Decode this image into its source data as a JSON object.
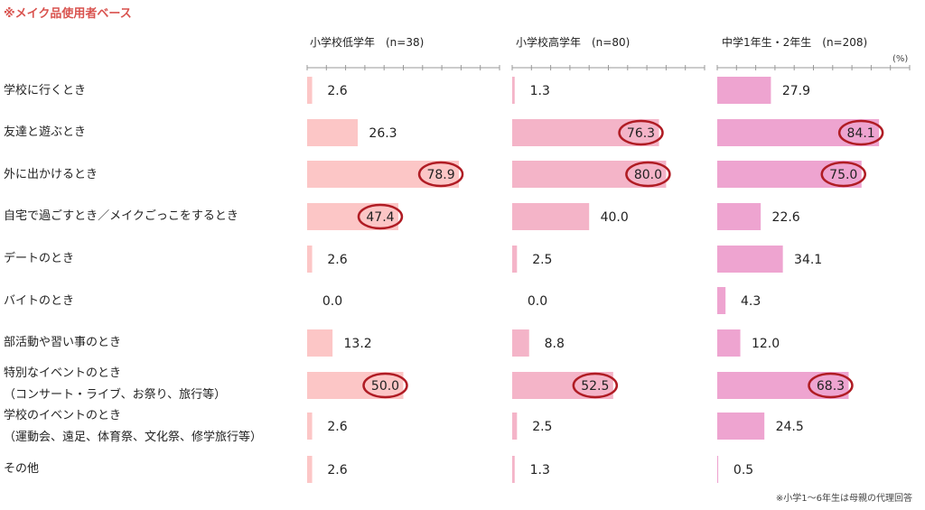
{
  "notes": {
    "base": "※メイク品使用者ベース",
    "proxy": "※小学1〜6年生は母親の代理回答",
    "unit": "(%)"
  },
  "colors": {
    "panels": [
      "#fcc6c6",
      "#f4b4c8",
      "#eea4d0"
    ],
    "highlight": "#b01c24"
  },
  "chart_data": {
    "type": "bar",
    "orientation": "horizontal",
    "categories": [
      "学校に行くとき",
      "友達と遊ぶとき",
      "外に出かけるとき",
      "自宅で過ごすとき／メイクごっこをするとき",
      "デートのとき",
      "バイトのとき",
      "部活動や習い事のとき",
      "特別なイベントのとき",
      "学校のイベントのとき",
      "その他"
    ],
    "category_sublabels": [
      "",
      "",
      "",
      "",
      "",
      "",
      "",
      "（コンサート・ライブ、お祭り、旅行等）",
      "（運動会、遠足、体育祭、文化祭、修学旅行等）",
      ""
    ],
    "series": [
      {
        "name": "小学校低学年　(n=38)",
        "values": [
          2.6,
          26.3,
          78.9,
          47.4,
          2.6,
          0.0,
          13.2,
          50.0,
          2.6,
          2.6
        ],
        "highlighted": [
          2,
          3,
          7
        ]
      },
      {
        "name": "小学校高学年　(n=80)",
        "values": [
          1.3,
          76.3,
          80.0,
          40.0,
          2.5,
          0.0,
          8.8,
          52.5,
          2.5,
          1.3
        ],
        "highlighted": [
          1,
          2,
          7
        ]
      },
      {
        "name": "中学1年生・2年生　(n=208)",
        "values": [
          27.9,
          84.1,
          75.0,
          22.6,
          34.1,
          4.3,
          12.0,
          68.3,
          24.5,
          0.5
        ],
        "highlighted": [
          1,
          2,
          7
        ]
      }
    ],
    "xlim": [
      0,
      100
    ],
    "grid": false
  }
}
